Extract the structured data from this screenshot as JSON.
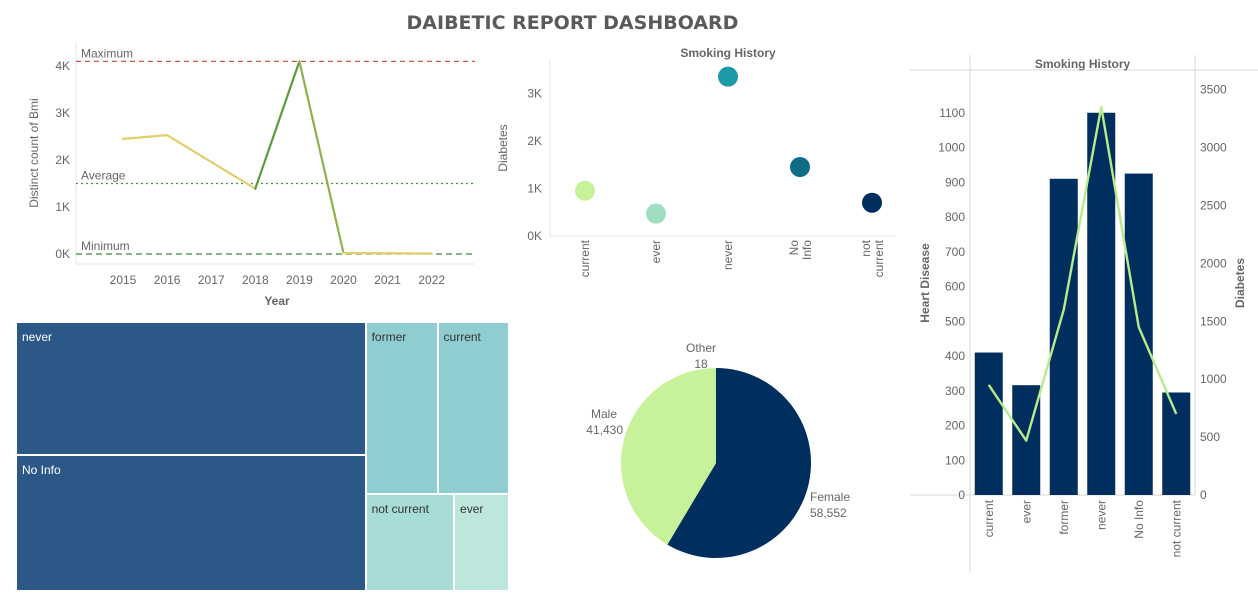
{
  "dashboard": {
    "title": "DAIBETIC REPORT DASHBOARD"
  },
  "colors": {
    "navy": "#002f5f",
    "lightgreen": "#c8f29a",
    "teal": "#1c9aa6",
    "darkteal": "#0f6c85",
    "treemap_blue": "#2c5887",
    "treemap_teal": "#90cdd0",
    "treemap_light": "#a8dcd6",
    "treemap_lightest": "#bde6dc"
  },
  "chart_data": [
    {
      "type": "line",
      "xlabel": "Year",
      "ylabel": "Distinct count of Bmi",
      "x": [
        2015,
        2016,
        2018,
        2019,
        2020,
        2022
      ],
      "values": [
        2450,
        2530,
        1390,
        4100,
        20,
        10
      ],
      "x_ticks": [
        "2015",
        "2016",
        "2017",
        "2018",
        "2019",
        "2020",
        "2021",
        "2022"
      ],
      "y_ticks": [
        "0K",
        "1K",
        "2K",
        "3K",
        "4K"
      ],
      "ylim": [
        0,
        4300
      ],
      "reference_lines": [
        {
          "label": "Maximum",
          "value": 4100
        },
        {
          "label": "Average",
          "value": 1500
        },
        {
          "label": "Minimum",
          "value": 0
        }
      ]
    },
    {
      "type": "scatter",
      "title": "Smoking History",
      "ylabel": "Diabetes",
      "categories": [
        "current",
        "ever",
        "never",
        "No Info",
        "not current"
      ],
      "values": [
        950,
        470,
        3350,
        1450,
        700
      ],
      "y_ticks": [
        "0K",
        "1K",
        "2K",
        "3K"
      ],
      "ylim": [
        0,
        3700
      ]
    },
    {
      "type": "bar",
      "title": "Smoking History",
      "ylabel": "Heart Disease",
      "y2label": "Diabetes",
      "categories": [
        "current",
        "ever",
        "former",
        "never",
        "No Info",
        "not current"
      ],
      "bar_values": [
        410,
        316,
        910,
        1100,
        925,
        295
      ],
      "line_values": [
        950,
        470,
        1600,
        3350,
        1450,
        700
      ],
      "y_ticks": [
        "0",
        "100",
        "200",
        "300",
        "400",
        "500",
        "600",
        "700",
        "800",
        "900",
        "1000",
        "1100"
      ],
      "y2_ticks": [
        "0",
        "500",
        "1000",
        "1500",
        "2000",
        "2500",
        "3000",
        "3500"
      ],
      "ylim": [
        0,
        1200
      ],
      "y2lim": [
        0,
        3600
      ]
    },
    {
      "type": "pie",
      "categories": [
        "Female",
        "Male",
        "Other"
      ],
      "values": [
        58552,
        41430,
        18
      ],
      "value_labels": [
        "58,552",
        "41,430",
        "18"
      ]
    },
    {
      "type": "treemap",
      "categories": [
        "never",
        "No Info",
        "former",
        "current",
        "not current",
        "ever"
      ],
      "values": [
        35095,
        35816,
        9352,
        9286,
        6447,
        4004
      ]
    }
  ]
}
